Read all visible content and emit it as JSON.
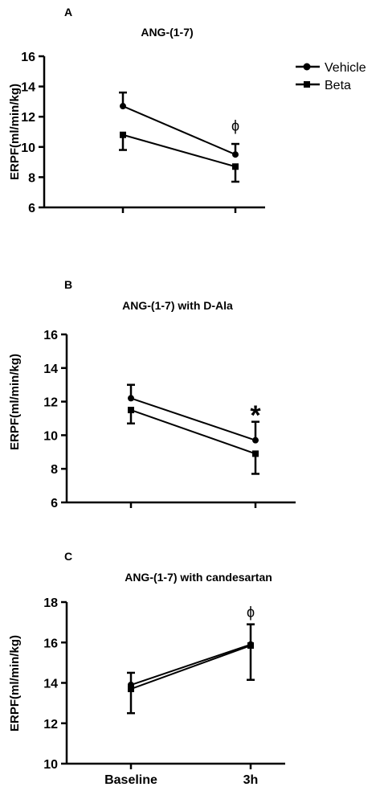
{
  "legend": {
    "placement": "top-right",
    "entries": [
      {
        "label": "Vehicle",
        "marker": "circle"
      },
      {
        "label": "Beta",
        "marker": "square"
      }
    ]
  },
  "chart_data": [
    {
      "type": "line",
      "panel_label": "A",
      "title": "ANG-(1-7)",
      "ylabel": "ERPF(ml/min/kg)",
      "xlabel": "",
      "categories": [
        "",
        ""
      ],
      "ylim": [
        6,
        16
      ],
      "yticks": [
        6,
        8,
        10,
        12,
        14,
        16
      ],
      "grid": false,
      "annotation": {
        "text": "ϕ",
        "category_index": 1,
        "y": 11.4
      },
      "series": [
        {
          "name": "Vehicle",
          "marker": "circle",
          "values": [
            12.7,
            9.5
          ],
          "errors": [
            0.9,
            0.7
          ]
        },
        {
          "name": "Beta",
          "marker": "square",
          "values": [
            10.8,
            8.7
          ],
          "errors": [
            1.0,
            1.0
          ]
        }
      ]
    },
    {
      "type": "line",
      "panel_label": "B",
      "title": "ANG-(1-7) with D-Ala",
      "ylabel": "ERPF(ml/min/kg)",
      "xlabel": "",
      "categories": [
        "",
        ""
      ],
      "ylim": [
        6,
        16
      ],
      "yticks": [
        6,
        8,
        10,
        12,
        14,
        16
      ],
      "grid": false,
      "annotation": {
        "text": "*",
        "category_index": 1,
        "y": 11.6
      },
      "series": [
        {
          "name": "Vehicle",
          "marker": "circle",
          "values": [
            12.2,
            9.7
          ],
          "errors": [
            0.8,
            1.1
          ]
        },
        {
          "name": "Beta",
          "marker": "square",
          "values": [
            11.5,
            8.9
          ],
          "errors": [
            0.8,
            1.2
          ]
        }
      ]
    },
    {
      "type": "line",
      "panel_label": "C",
      "title": "ANG-(1-7) with candesartan",
      "ylabel": "ERPF(ml/min/kg)",
      "xlabel": "",
      "categories": [
        "Baseline",
        "3h"
      ],
      "ylim": [
        10,
        18
      ],
      "yticks": [
        10,
        12,
        14,
        16,
        18
      ],
      "grid": false,
      "annotation": {
        "text": "ϕ",
        "category_index": 1,
        "y": 17.5
      },
      "series": [
        {
          "name": "Vehicle",
          "marker": "circle",
          "values": [
            13.9,
            15.9
          ],
          "errors": [
            0.6,
            1.0
          ]
        },
        {
          "name": "Beta",
          "marker": "square",
          "values": [
            13.7,
            15.85
          ],
          "errors": [
            1.2,
            1.7
          ]
        }
      ]
    }
  ]
}
